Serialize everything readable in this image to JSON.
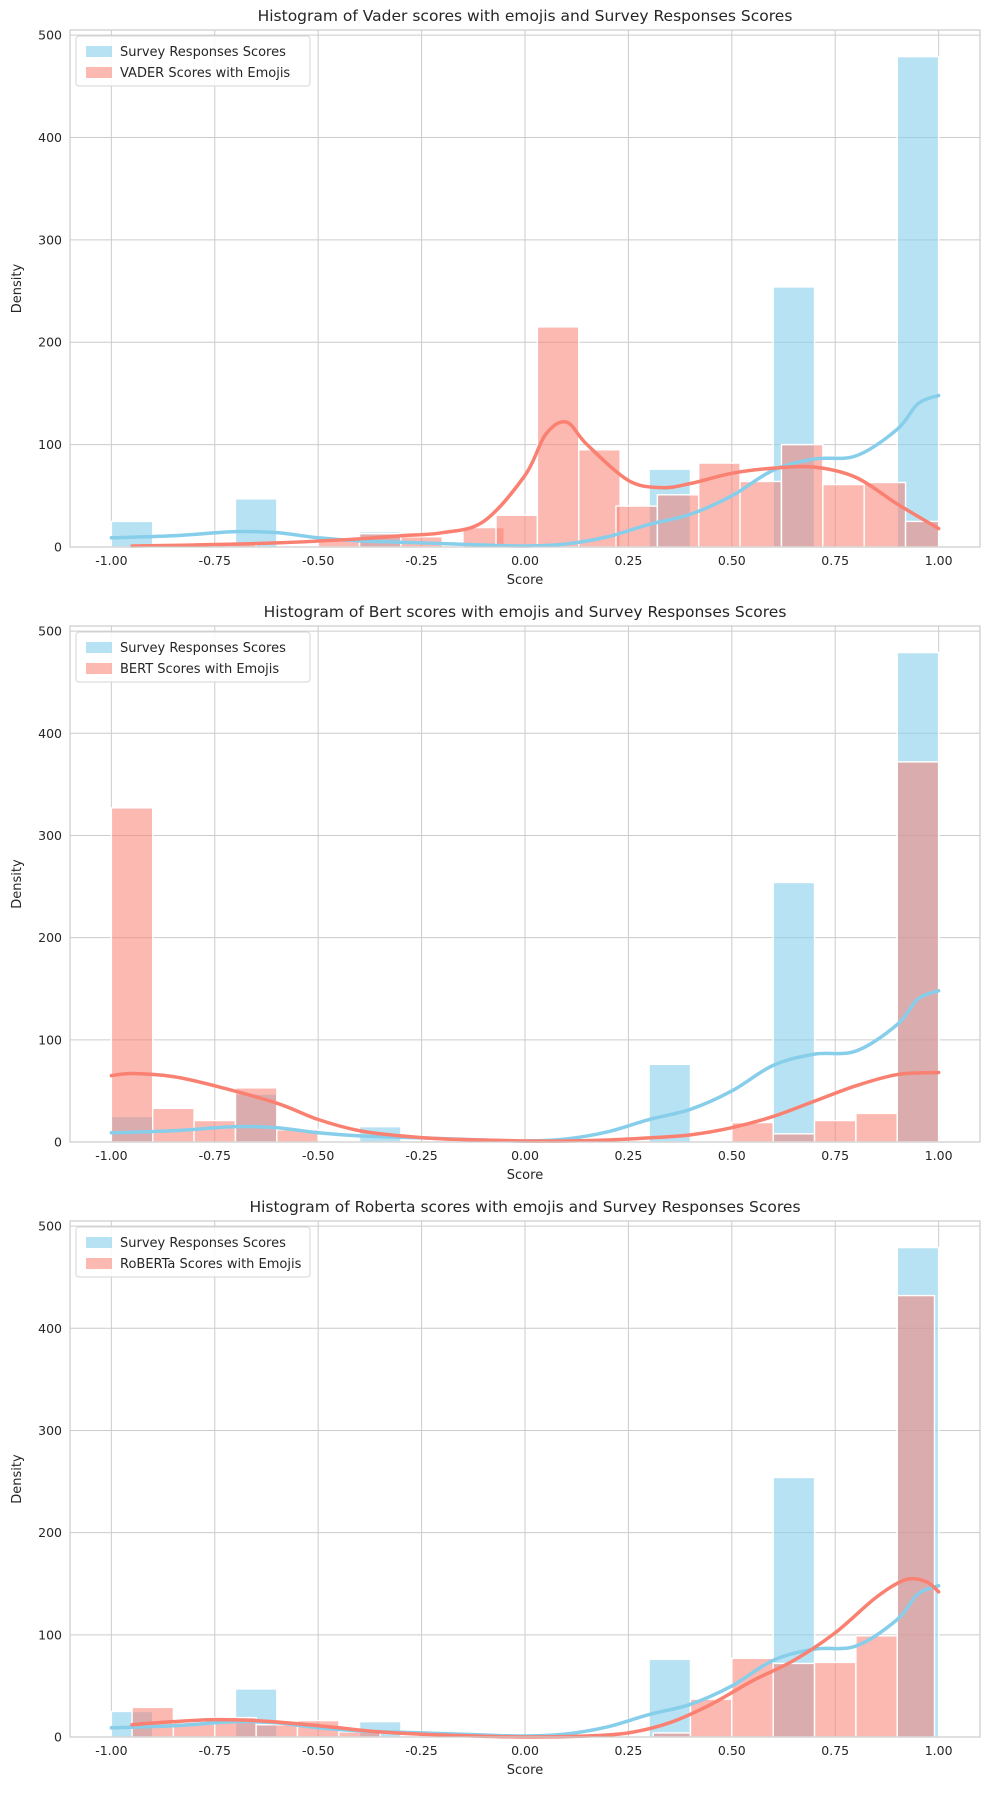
{
  "colors": {
    "survey": "#87CEEB",
    "model": "#FA8072",
    "grid": "#cccccc",
    "frame": "#cccccc"
  },
  "chart_data": [
    {
      "type": "bar",
      "title": "Histogram of Vader scores with emojis and Survey Responses Scores",
      "xlabel": "Score",
      "ylabel": "Density",
      "xlim": [
        -1.1,
        1.1
      ],
      "ylim": [
        0,
        505
      ],
      "xticks": [
        "-1.00",
        "-0.75",
        "-0.50",
        "-0.25",
        "0.00",
        "0.25",
        "0.50",
        "0.75",
        "1.00"
      ],
      "yticks": [
        "0",
        "100",
        "200",
        "300",
        "400",
        "500"
      ],
      "legend_position": "top-left",
      "grid": true,
      "series": [
        {
          "name": "Survey Responses Scores",
          "bins": [
            [
              -1.0,
              -0.9,
              25
            ],
            [
              -0.7,
              -0.6,
              47
            ],
            [
              -0.4,
              -0.3,
              15
            ],
            [
              0.3,
              0.4,
              76
            ],
            [
              0.6,
              0.7,
              254
            ],
            [
              0.9,
              1.0,
              479
            ]
          ],
          "kde": [
            [
              -1.0,
              9
            ],
            [
              -0.85,
              11
            ],
            [
              -0.7,
              15
            ],
            [
              -0.6,
              14
            ],
            [
              -0.5,
              9
            ],
            [
              -0.4,
              6
            ],
            [
              -0.25,
              4
            ],
            [
              -0.1,
              2
            ],
            [
              0.0,
              1
            ],
            [
              0.1,
              3
            ],
            [
              0.2,
              10
            ],
            [
              0.3,
              22
            ],
            [
              0.4,
              32
            ],
            [
              0.5,
              50
            ],
            [
              0.6,
              75
            ],
            [
              0.7,
              86
            ],
            [
              0.8,
              89
            ],
            [
              0.9,
              115
            ],
            [
              0.95,
              140
            ],
            [
              1.0,
              148
            ]
          ]
        },
        {
          "name": "VADER Scores with Emojis",
          "bins": [
            [
              -0.95,
              -0.85,
              2
            ],
            [
              -0.75,
              -0.65,
              2
            ],
            [
              -0.5,
              -0.4,
              7
            ],
            [
              -0.4,
              -0.3,
              13
            ],
            [
              -0.3,
              -0.2,
              10
            ],
            [
              -0.15,
              -0.05,
              19
            ],
            [
              -0.07,
              0.03,
              31
            ],
            [
              0.03,
              0.13,
              215
            ],
            [
              0.13,
              0.23,
              95
            ],
            [
              0.22,
              0.32,
              40
            ],
            [
              0.32,
              0.42,
              51
            ],
            [
              0.42,
              0.52,
              82
            ],
            [
              0.52,
              0.62,
              64
            ],
            [
              0.62,
              0.72,
              100
            ],
            [
              0.72,
              0.82,
              61
            ],
            [
              0.82,
              0.92,
              63
            ],
            [
              0.92,
              1.0,
              25
            ]
          ],
          "kde": [
            [
              -0.95,
              1
            ],
            [
              -0.8,
              2
            ],
            [
              -0.6,
              4
            ],
            [
              -0.4,
              8
            ],
            [
              -0.3,
              11
            ],
            [
              -0.2,
              14
            ],
            [
              -0.1,
              25
            ],
            [
              0.0,
              70
            ],
            [
              0.05,
              110
            ],
            [
              0.1,
              122
            ],
            [
              0.15,
              100
            ],
            [
              0.25,
              65
            ],
            [
              0.33,
              58
            ],
            [
              0.4,
              62
            ],
            [
              0.5,
              72
            ],
            [
              0.6,
              77
            ],
            [
              0.7,
              78
            ],
            [
              0.8,
              68
            ],
            [
              0.9,
              42
            ],
            [
              1.0,
              18
            ]
          ]
        }
      ]
    },
    {
      "type": "bar",
      "title": "Histogram of Bert scores with emojis and Survey Responses Scores",
      "xlabel": "Score",
      "ylabel": "Density",
      "xlim": [
        -1.1,
        1.1
      ],
      "ylim": [
        0,
        505
      ],
      "xticks": [
        "-1.00",
        "-0.75",
        "-0.50",
        "-0.25",
        "0.00",
        "0.25",
        "0.50",
        "0.75",
        "1.00"
      ],
      "yticks": [
        "0",
        "100",
        "200",
        "300",
        "400",
        "500"
      ],
      "legend_position": "top-left",
      "grid": true,
      "series": [
        {
          "name": "Survey Responses Scores",
          "bins": [
            [
              -1.0,
              -0.9,
              25
            ],
            [
              -0.7,
              -0.6,
              47
            ],
            [
              -0.4,
              -0.3,
              15
            ],
            [
              0.3,
              0.4,
              76
            ],
            [
              0.6,
              0.7,
              254
            ],
            [
              0.9,
              1.0,
              479
            ]
          ],
          "kde": [
            [
              -1.0,
              9
            ],
            [
              -0.85,
              11
            ],
            [
              -0.7,
              15
            ],
            [
              -0.6,
              14
            ],
            [
              -0.5,
              9
            ],
            [
              -0.4,
              6
            ],
            [
              -0.25,
              4
            ],
            [
              -0.1,
              2
            ],
            [
              0.0,
              1
            ],
            [
              0.1,
              3
            ],
            [
              0.2,
              10
            ],
            [
              0.3,
              22
            ],
            [
              0.4,
              32
            ],
            [
              0.5,
              50
            ],
            [
              0.6,
              75
            ],
            [
              0.7,
              86
            ],
            [
              0.8,
              89
            ],
            [
              0.9,
              115
            ],
            [
              0.95,
              140
            ],
            [
              1.0,
              148
            ]
          ]
        },
        {
          "name": "BERT Scores with Emojis",
          "bins": [
            [
              -1.0,
              -0.9,
              327
            ],
            [
              -0.9,
              -0.8,
              33
            ],
            [
              -0.8,
              -0.7,
              21
            ],
            [
              -0.7,
              -0.6,
              53
            ],
            [
              -0.6,
              -0.5,
              12
            ],
            [
              0.5,
              0.6,
              19
            ],
            [
              0.6,
              0.7,
              8
            ],
            [
              0.7,
              0.8,
              21
            ],
            [
              0.8,
              0.9,
              28
            ],
            [
              0.9,
              1.0,
              372
            ]
          ],
          "kde": [
            [
              -1.0,
              65
            ],
            [
              -0.95,
              67
            ],
            [
              -0.85,
              64
            ],
            [
              -0.75,
              55
            ],
            [
              -0.6,
              38
            ],
            [
              -0.5,
              22
            ],
            [
              -0.4,
              11
            ],
            [
              -0.3,
              6
            ],
            [
              -0.2,
              3
            ],
            [
              -0.1,
              2
            ],
            [
              0.0,
              1
            ],
            [
              0.1,
              1
            ],
            [
              0.2,
              2
            ],
            [
              0.3,
              4
            ],
            [
              0.4,
              7
            ],
            [
              0.5,
              14
            ],
            [
              0.6,
              25
            ],
            [
              0.7,
              40
            ],
            [
              0.8,
              55
            ],
            [
              0.9,
              66
            ],
            [
              1.0,
              68
            ]
          ]
        }
      ]
    },
    {
      "type": "bar",
      "title": "Histogram of Roberta scores with emojis and Survey Responses Scores",
      "xlabel": "Score",
      "ylabel": "Density",
      "xlim": [
        -1.1,
        1.1
      ],
      "ylim": [
        0,
        505
      ],
      "xticks": [
        "-1.00",
        "-0.75",
        "-0.50",
        "-0.25",
        "0.00",
        "0.25",
        "0.50",
        "0.75",
        "1.00"
      ],
      "yticks": [
        "0",
        "100",
        "200",
        "300",
        "400",
        "500"
      ],
      "legend_position": "top-left",
      "grid": true,
      "series": [
        {
          "name": "Survey Responses Scores",
          "bins": [
            [
              -1.0,
              -0.9,
              25
            ],
            [
              -0.7,
              -0.6,
              47
            ],
            [
              -0.4,
              -0.3,
              15
            ],
            [
              0.3,
              0.4,
              76
            ],
            [
              0.6,
              0.7,
              254
            ],
            [
              0.9,
              1.0,
              479
            ]
          ],
          "kde": [
            [
              -1.0,
              9
            ],
            [
              -0.85,
              11
            ],
            [
              -0.7,
              15
            ],
            [
              -0.6,
              14
            ],
            [
              -0.5,
              9
            ],
            [
              -0.4,
              6
            ],
            [
              -0.25,
              4
            ],
            [
              -0.1,
              2
            ],
            [
              0.0,
              1
            ],
            [
              0.1,
              3
            ],
            [
              0.2,
              10
            ],
            [
              0.3,
              22
            ],
            [
              0.4,
              32
            ],
            [
              0.5,
              50
            ],
            [
              0.6,
              75
            ],
            [
              0.7,
              86
            ],
            [
              0.8,
              89
            ],
            [
              0.9,
              115
            ],
            [
              0.95,
              140
            ],
            [
              1.0,
              148
            ]
          ]
        },
        {
          "name": "RoBERTa Scores with Emojis",
          "bins": [
            [
              -0.95,
              -0.85,
              29
            ],
            [
              -0.85,
              -0.75,
              14
            ],
            [
              -0.75,
              -0.65,
              19
            ],
            [
              -0.65,
              -0.55,
              12
            ],
            [
              -0.55,
              -0.45,
              16
            ],
            [
              -0.45,
              -0.35,
              5
            ],
            [
              0.31,
              0.4,
              4
            ],
            [
              0.4,
              0.5,
              37
            ],
            [
              0.5,
              0.6,
              77
            ],
            [
              0.6,
              0.7,
              72
            ],
            [
              0.7,
              0.8,
              73
            ],
            [
              0.8,
              0.9,
              99
            ],
            [
              0.9,
              0.99,
              432
            ]
          ],
          "kde": [
            [
              -0.95,
              12
            ],
            [
              -0.85,
              15
            ],
            [
              -0.75,
              17
            ],
            [
              -0.65,
              16
            ],
            [
              -0.55,
              13
            ],
            [
              -0.45,
              9
            ],
            [
              -0.35,
              5
            ],
            [
              -0.2,
              2
            ],
            [
              0.0,
              0
            ],
            [
              0.15,
              1
            ],
            [
              0.25,
              4
            ],
            [
              0.35,
              14
            ],
            [
              0.45,
              32
            ],
            [
              0.55,
              55
            ],
            [
              0.65,
              75
            ],
            [
              0.75,
              102
            ],
            [
              0.85,
              137
            ],
            [
              0.92,
              154
            ],
            [
              0.97,
              152
            ],
            [
              1.0,
              142
            ]
          ]
        }
      ]
    }
  ]
}
